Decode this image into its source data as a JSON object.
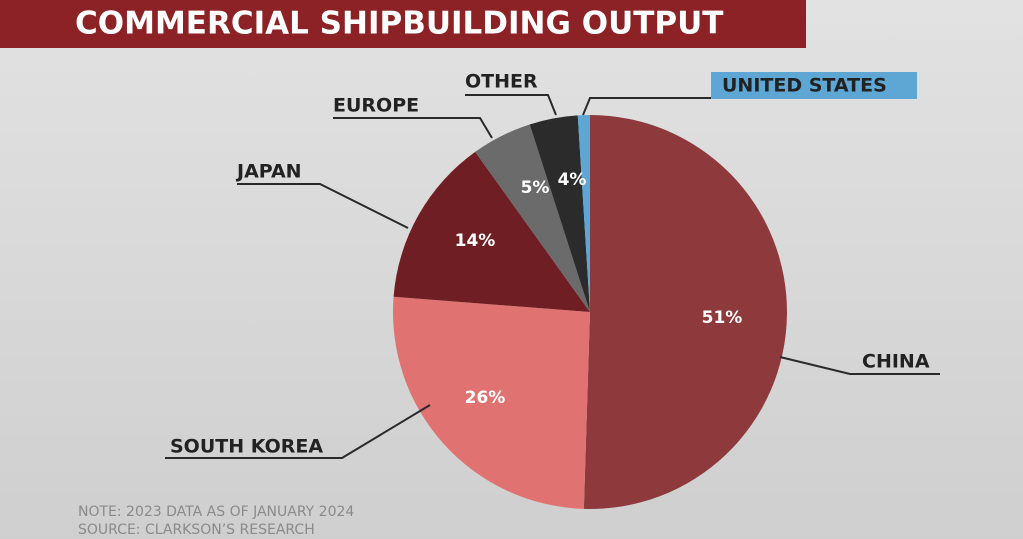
{
  "chart_data": {
    "type": "pie",
    "title": "COMMERCIAL SHIPBUILDING OUTPUT",
    "categories": [
      "CHINA",
      "SOUTH KOREA",
      "JAPAN",
      "EUROPE",
      "OTHER",
      "UNITED STATES"
    ],
    "values": [
      51,
      26,
      14,
      5,
      4,
      1
    ],
    "value_labels": [
      "51%",
      "26%",
      "14%",
      "5%",
      "4%",
      null
    ],
    "colors": [
      "#8e393c",
      "#e07272",
      "#6f1f23",
      "#6b6b6b",
      "#2b2b2b",
      "#5ea6d3"
    ],
    "notes": [
      "NOTE: 2023 DATA AS OF JANUARY 2024",
      "SOURCE: CLARKSON’S RESEARCH"
    ]
  }
}
